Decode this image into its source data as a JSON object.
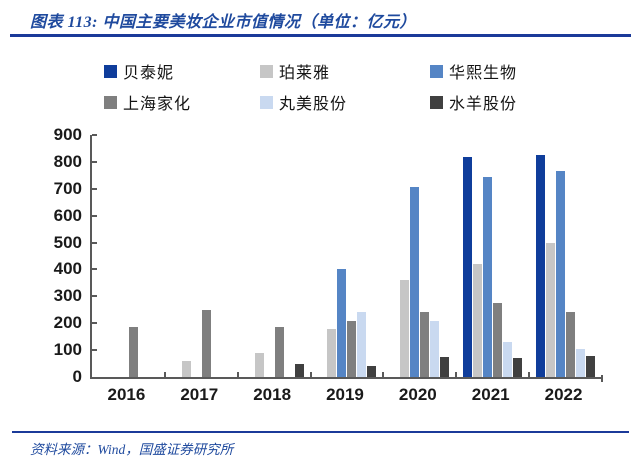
{
  "header": {
    "title": "图表 113: 中国主要美妆企业市值情况（单位：亿元）"
  },
  "footer": {
    "source": "资料来源：Wind，国盛证券研究所"
  },
  "colors": {
    "accent_blue": "#1F4A9E",
    "rule_blue": "#1B3A99",
    "axis_gray": "#595959",
    "label_text": "#1A1A1A"
  },
  "chart_data": {
    "type": "bar",
    "title": "中国主要美妆企业市值情况（单位：亿元）",
    "categories": [
      "2016",
      "2017",
      "2018",
      "2019",
      "2020",
      "2021",
      "2022"
    ],
    "series": [
      {
        "name": "贝泰妮",
        "color": "#0F3D9B",
        "values": [
          0,
          0,
          0,
          0,
          0,
          820,
          825
        ]
      },
      {
        "name": "珀莱雅",
        "color": "#C6C6C6",
        "values": [
          0,
          60,
          90,
          180,
          360,
          420,
          500
        ]
      },
      {
        "name": "华熙生物",
        "color": "#5585C5",
        "values": [
          0,
          0,
          0,
          400,
          705,
          745,
          765
        ]
      },
      {
        "name": "上海家化",
        "color": "#7F7F7F",
        "values": [
          185,
          250,
          185,
          210,
          240,
          275,
          240
        ]
      },
      {
        "name": "丸美股份",
        "color": "#C9D9F0",
        "values": [
          0,
          0,
          0,
          240,
          210,
          130,
          105
        ]
      },
      {
        "name": "水羊股份",
        "color": "#404040",
        "values": [
          0,
          0,
          50,
          40,
          75,
          70,
          80
        ]
      }
    ],
    "xlabel": "",
    "ylabel": "",
    "ylim": [
      0,
      900
    ],
    "yticks": [
      "0",
      "100",
      "200",
      "300",
      "400",
      "500",
      "600",
      "700",
      "800",
      "900"
    ],
    "legend_position": "top",
    "grid": false
  }
}
